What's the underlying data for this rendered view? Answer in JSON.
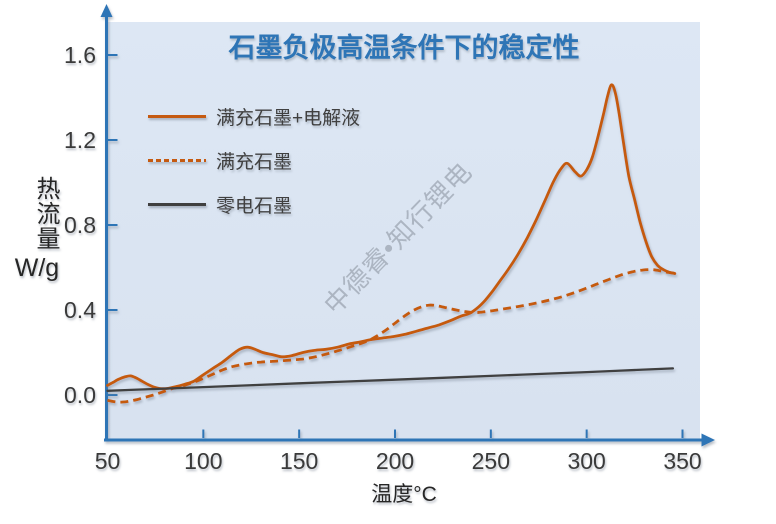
{
  "watermark_text": "中德睿•知行锂电",
  "colors": {
    "accent_orange": "#C55A11",
    "line_dark": "#3F3F3F",
    "axis_blue": "#2E75B6",
    "title_blue": "#2E75B6",
    "plot_background": "#D9E3F1",
    "watermark_gray": "#7D8692"
  },
  "chart_data": {
    "type": "line",
    "title": "石墨负极高温条件下的稳定性",
    "xlabel": "温度°C",
    "ylabel": "热流量 W/g",
    "ylabel_cjk": "热流量",
    "ylabel_unit": "W/g",
    "xlim": [
      50,
      360
    ],
    "ylim": [
      -0.12,
      1.75
    ],
    "x_ticks": [
      "50",
      "100",
      "150",
      "200",
      "250",
      "300",
      "350"
    ],
    "y_ticks": [
      "0.0",
      "0.4",
      "0.8",
      "1.2",
      "1.6"
    ],
    "grid": false,
    "legend_position": "inside-top-left",
    "series": [
      {
        "name": "满充石墨+电解液",
        "style": "solid",
        "color": "#C55A11",
        "points": [
          [
            50,
            0.045
          ],
          [
            53,
            0.06
          ],
          [
            56,
            0.075
          ],
          [
            59,
            0.085
          ],
          [
            62,
            0.09
          ],
          [
            65,
            0.08
          ],
          [
            68,
            0.065
          ],
          [
            71,
            0.05
          ],
          [
            74,
            0.038
          ],
          [
            78,
            0.03
          ],
          [
            82,
            0.032
          ],
          [
            86,
            0.04
          ],
          [
            90,
            0.05
          ],
          [
            95,
            0.065
          ],
          [
            100,
            0.095
          ],
          [
            105,
            0.125
          ],
          [
            110,
            0.155
          ],
          [
            115,
            0.19
          ],
          [
            119,
            0.215
          ],
          [
            123,
            0.225
          ],
          [
            127,
            0.215
          ],
          [
            131,
            0.2
          ],
          [
            136,
            0.19
          ],
          [
            141,
            0.18
          ],
          [
            146,
            0.185
          ],
          [
            152,
            0.2
          ],
          [
            158,
            0.21
          ],
          [
            164,
            0.215
          ],
          [
            170,
            0.225
          ],
          [
            176,
            0.24
          ],
          [
            182,
            0.25
          ],
          [
            187,
            0.26
          ],
          [
            193,
            0.268
          ],
          [
            199,
            0.275
          ],
          [
            205,
            0.285
          ],
          [
            211,
            0.3
          ],
          [
            217,
            0.315
          ],
          [
            223,
            0.33
          ],
          [
            229,
            0.35
          ],
          [
            234,
            0.37
          ],
          [
            239,
            0.385
          ],
          [
            243,
            0.41
          ],
          [
            247,
            0.445
          ],
          [
            251,
            0.49
          ],
          [
            255,
            0.54
          ],
          [
            259,
            0.59
          ],
          [
            264,
            0.66
          ],
          [
            269,
            0.74
          ],
          [
            274,
            0.83
          ],
          [
            279,
            0.93
          ],
          [
            283,
            1.01
          ],
          [
            287,
            1.07
          ],
          [
            290,
            1.09
          ],
          [
            294,
            1.05
          ],
          [
            297,
            1.03
          ],
          [
            300,
            1.06
          ],
          [
            303,
            1.12
          ],
          [
            306,
            1.22
          ],
          [
            309,
            1.33
          ],
          [
            311,
            1.41
          ],
          [
            313,
            1.46
          ],
          [
            315,
            1.42
          ],
          [
            317,
            1.32
          ],
          [
            319,
            1.2
          ],
          [
            322,
            1.03
          ],
          [
            325,
            0.92
          ],
          [
            328,
            0.81
          ],
          [
            331,
            0.72
          ],
          [
            334,
            0.65
          ],
          [
            337,
            0.61
          ],
          [
            340,
            0.59
          ],
          [
            343,
            0.578
          ],
          [
            346,
            0.572
          ]
        ]
      },
      {
        "name": "满充石墨",
        "style": "dashed",
        "color": "#C55A11",
        "points": [
          [
            50,
            -0.025
          ],
          [
            54,
            -0.032
          ],
          [
            58,
            -0.033
          ],
          [
            62,
            -0.028
          ],
          [
            66,
            -0.02
          ],
          [
            70,
            -0.01
          ],
          [
            74,
            0.0
          ],
          [
            78,
            0.012
          ],
          [
            82,
            0.025
          ],
          [
            86,
            0.035
          ],
          [
            90,
            0.045
          ],
          [
            95,
            0.06
          ],
          [
            100,
            0.078
          ],
          [
            105,
            0.098
          ],
          [
            110,
            0.118
          ],
          [
            115,
            0.133
          ],
          [
            120,
            0.143
          ],
          [
            125,
            0.15
          ],
          [
            130,
            0.155
          ],
          [
            136,
            0.158
          ],
          [
            142,
            0.162
          ],
          [
            148,
            0.166
          ],
          [
            154,
            0.172
          ],
          [
            160,
            0.183
          ],
          [
            166,
            0.197
          ],
          [
            172,
            0.213
          ],
          [
            178,
            0.23
          ],
          [
            183,
            0.245
          ],
          [
            187,
            0.26
          ],
          [
            191,
            0.28
          ],
          [
            196,
            0.31
          ],
          [
            201,
            0.345
          ],
          [
            206,
            0.378
          ],
          [
            210,
            0.4
          ],
          [
            214,
            0.415
          ],
          [
            218,
            0.423
          ],
          [
            222,
            0.42
          ],
          [
            227,
            0.41
          ],
          [
            232,
            0.4
          ],
          [
            237,
            0.392
          ],
          [
            242,
            0.388
          ],
          [
            247,
            0.392
          ],
          [
            252,
            0.398
          ],
          [
            258,
            0.407
          ],
          [
            264,
            0.416
          ],
          [
            270,
            0.426
          ],
          [
            276,
            0.437
          ],
          [
            282,
            0.45
          ],
          [
            288,
            0.465
          ],
          [
            294,
            0.483
          ],
          [
            300,
            0.503
          ],
          [
            306,
            0.524
          ],
          [
            312,
            0.545
          ],
          [
            318,
            0.565
          ],
          [
            324,
            0.58
          ],
          [
            329,
            0.588
          ],
          [
            334,
            0.59
          ],
          [
            338,
            0.585
          ],
          [
            342,
            0.578
          ],
          [
            346,
            0.572
          ]
        ]
      },
      {
        "name": "零电石墨",
        "style": "solid",
        "color": "#3F3F3F",
        "points": [
          [
            50,
            0.02
          ],
          [
            100,
            0.037
          ],
          [
            150,
            0.055
          ],
          [
            200,
            0.072
          ],
          [
            250,
            0.09
          ],
          [
            300,
            0.108
          ],
          [
            345,
            0.125
          ]
        ]
      }
    ]
  }
}
